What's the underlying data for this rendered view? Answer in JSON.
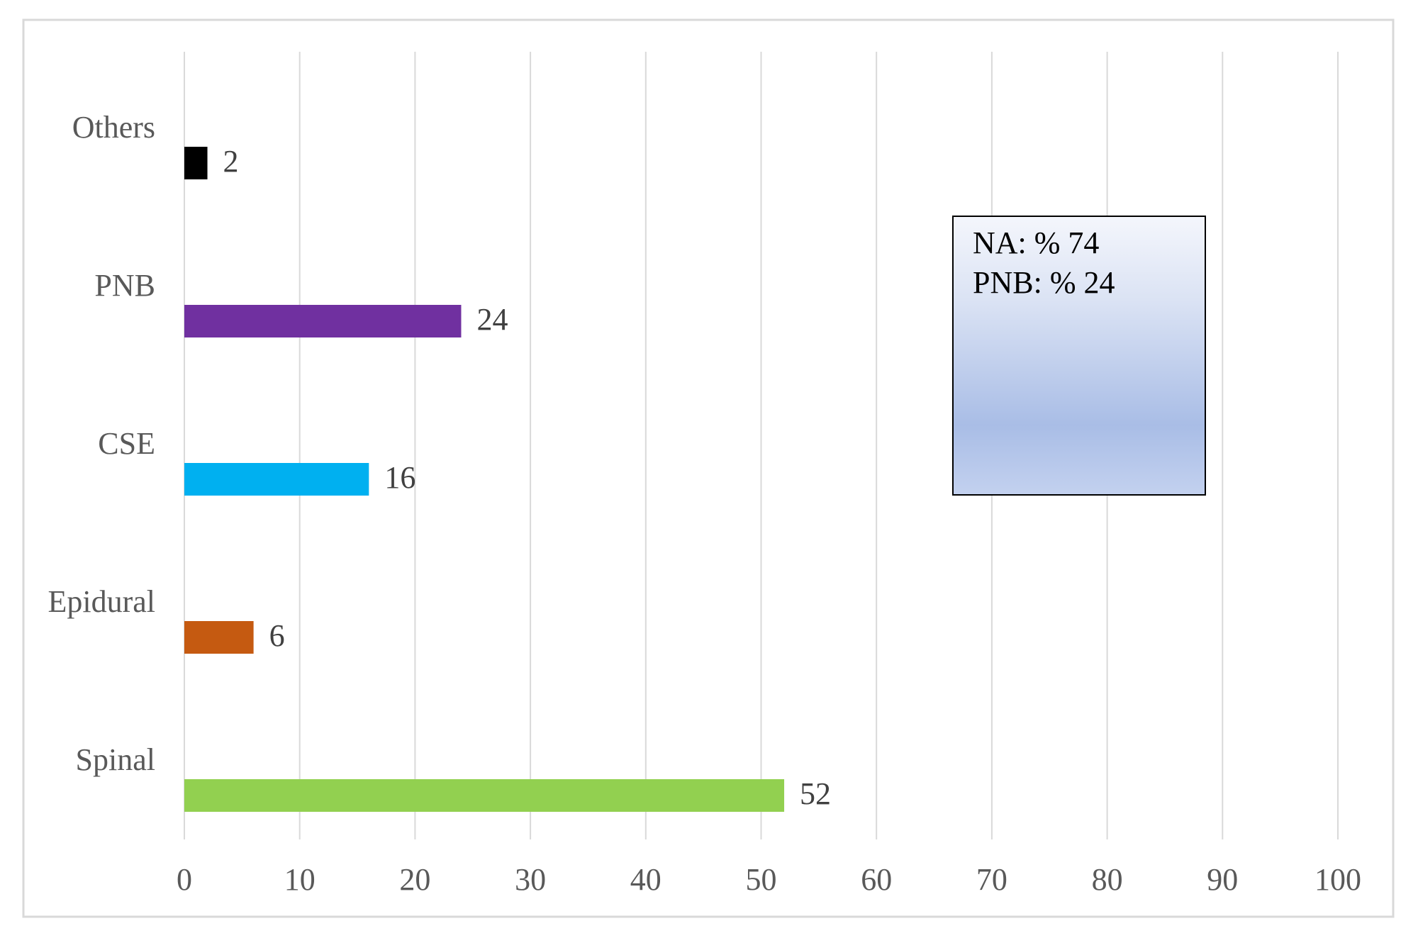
{
  "chart_data": {
    "type": "bar",
    "orientation": "horizontal",
    "categories": [
      "Others",
      "PNB",
      "CSE",
      "Epidural",
      "Spinal"
    ],
    "values": [
      2,
      24,
      16,
      6,
      52
    ],
    "colors": [
      "#000000",
      "#7030a0",
      "#00b0f0",
      "#c55a11",
      "#92d050"
    ],
    "xlim": [
      0,
      100
    ],
    "xticks": [
      0,
      10,
      20,
      30,
      40,
      50,
      60,
      70,
      80,
      90,
      100
    ],
    "grid": true,
    "annotations": [
      "NA: % 74",
      "PNB: % 24"
    ]
  }
}
